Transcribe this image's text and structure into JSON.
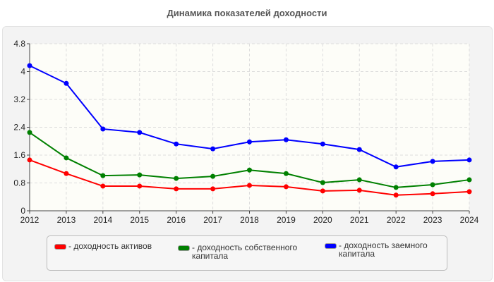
{
  "chart_data": {
    "type": "line",
    "title": "Динамика показателей доходности",
    "categories": [
      "2012",
      "2013",
      "2014",
      "2015",
      "2016",
      "2017",
      "2018",
      "2019",
      "2020",
      "2021",
      "2022",
      "2023",
      "2024"
    ],
    "ylim": [
      0,
      4.8
    ],
    "yticks": [
      "0",
      "0.8",
      "1.6",
      "2.4",
      "3.2",
      "4",
      "4.8"
    ],
    "grid": true,
    "legend_position": "bottom",
    "series": [
      {
        "name": "- доходность активов",
        "color": "#ff0000",
        "values": [
          1.46,
          1.07,
          0.71,
          0.71,
          0.63,
          0.63,
          0.73,
          0.69,
          0.57,
          0.59,
          0.45,
          0.49,
          0.55
        ]
      },
      {
        "name": "- доходность собственного капитала",
        "color": "#008000",
        "values": [
          2.25,
          1.52,
          1.01,
          1.03,
          0.93,
          0.99,
          1.17,
          1.07,
          0.81,
          0.89,
          0.67,
          0.75,
          0.89
        ]
      },
      {
        "name": "- доходность заемного капитала",
        "color": "#0000ff",
        "values": [
          4.17,
          3.66,
          2.35,
          2.25,
          1.92,
          1.78,
          1.98,
          2.04,
          1.92,
          1.76,
          1.26,
          1.42,
          1.46
        ]
      }
    ]
  }
}
